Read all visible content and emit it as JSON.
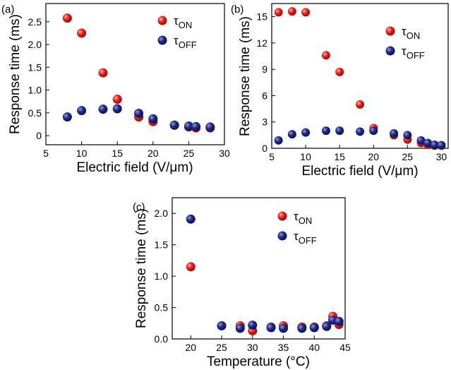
{
  "colors": {
    "on": "#e8211e",
    "off": "#1f2a8a"
  },
  "chart_data": [
    {
      "type": "scatter",
      "panel_label": "(a)",
      "xlabel": "Electric field (V/μm)",
      "ylabel": "Response time (ms)",
      "xlim": [
        5,
        30
      ],
      "ylim": [
        -0.2,
        2.9
      ],
      "xticks": [
        "5",
        "10",
        "15",
        "20",
        "25",
        "30"
      ],
      "yticks": [
        "0",
        "0.5",
        "1.0",
        "1.5",
        "2.0",
        "2.5"
      ],
      "legend_position": "top-right",
      "series": [
        {
          "name": "τON",
          "sym": "τ",
          "sub": "ON",
          "color_key": "on",
          "x": [
            8,
            10,
            13,
            15,
            18,
            20,
            23,
            25,
            26,
            28
          ],
          "y": [
            2.58,
            2.25,
            1.38,
            0.8,
            0.41,
            0.31,
            0.23,
            0.19,
            0.17,
            0.17
          ]
        },
        {
          "name": "τOFF",
          "sym": "τ",
          "sub": "OFF",
          "color_key": "off",
          "x": [
            8,
            10,
            13,
            15,
            18,
            20,
            23,
            25,
            26,
            28
          ],
          "y": [
            0.41,
            0.55,
            0.58,
            0.59,
            0.49,
            0.37,
            0.23,
            0.21,
            0.2,
            0.19
          ]
        }
      ]
    },
    {
      "type": "scatter",
      "panel_label": "(b)",
      "xlabel": "Electric field (V/μm)",
      "ylabel": "Response time (ms)",
      "xlim": [
        5,
        31
      ],
      "ylim": [
        0,
        16.5
      ],
      "xticks": [
        "5",
        "10",
        "15",
        "20",
        "25",
        "30"
      ],
      "yticks": [
        "0",
        "3",
        "6",
        "9",
        "12",
        "15"
      ],
      "legend_position": "top-right",
      "series": [
        {
          "name": "τON",
          "sym": "τ",
          "sub": "ON",
          "color_key": "on",
          "x": [
            6,
            8,
            10,
            13,
            15,
            18,
            20,
            23,
            25,
            27,
            28,
            29,
            30
          ],
          "y": [
            15.5,
            15.6,
            15.5,
            10.6,
            8.7,
            5.0,
            2.3,
            1.5,
            1.0,
            0.6,
            0.4,
            0.3,
            0.3
          ]
        },
        {
          "name": "τOFF",
          "sym": "τ",
          "sub": "OFF",
          "color_key": "off",
          "x": [
            6,
            8,
            10,
            13,
            15,
            18,
            20,
            23,
            25,
            27,
            28,
            29,
            30
          ],
          "y": [
            0.9,
            1.6,
            1.8,
            2.0,
            2.0,
            1.9,
            2.0,
            1.7,
            1.5,
            0.9,
            0.6,
            0.4,
            0.35
          ]
        }
      ]
    },
    {
      "type": "scatter",
      "panel_label": "(c)",
      "xlabel": "Temperature (°C)",
      "ylabel": "Response time (ms)",
      "xlim": [
        17,
        45
      ],
      "ylim": [
        0,
        2.25
      ],
      "xticks": [
        "20",
        "25",
        "30",
        "35",
        "40",
        "45"
      ],
      "yticks": [
        "0.0",
        "0.5",
        "1.0",
        "1.5",
        "2.0"
      ],
      "legend_position": "top-right",
      "series": [
        {
          "name": "τON",
          "sym": "τ",
          "sub": "ON",
          "color_key": "on",
          "x": [
            20,
            25,
            28,
            30,
            33,
            35,
            38,
            40,
            42,
            43,
            44
          ],
          "y": [
            1.15,
            0.21,
            0.21,
            0.13,
            0.19,
            0.21,
            0.19,
            0.19,
            0.21,
            0.36,
            0.23
          ]
        },
        {
          "name": "τOFF",
          "sym": "τ",
          "sub": "OFF",
          "color_key": "off",
          "x": [
            20,
            25,
            28,
            30,
            33,
            35,
            38,
            40,
            42,
            43,
            44
          ],
          "y": [
            1.91,
            0.21,
            0.17,
            0.22,
            0.18,
            0.17,
            0.17,
            0.18,
            0.2,
            0.3,
            0.28
          ]
        }
      ]
    }
  ]
}
